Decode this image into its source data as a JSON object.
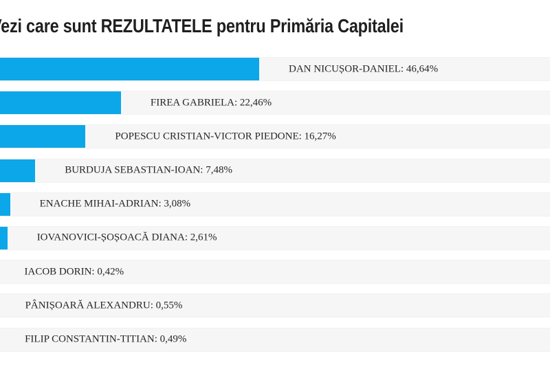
{
  "page": {
    "title": "Vezi care sunt REZULTATELE pentru Primăria Capitalei"
  },
  "colors": {
    "bar": "#0ba7e9",
    "track": "#f6f6f7",
    "title_text": "#1f1f1f",
    "label_text": "#26262a"
  },
  "chart_data": {
    "type": "bar",
    "orientation": "horizontal",
    "title": "Vezi care sunt REZULTATELE pentru Primăria Capitalei",
    "categories": [
      "DAN NICUȘOR-DANIEL",
      "FIREA GABRIELA",
      "POPESCU CRISTIAN-VICTOR PIEDONE",
      "BURDUJA SEBASTIAN-IOAN",
      "ENACHE MIHAI-ADRIAN",
      "IOVANOVICI-ȘOȘOACĂ DIANA",
      "IACOB DORIN",
      "PÂNIȘOARĂ ALEXANDRU",
      "FILIP CONSTANTIN-TITIAN"
    ],
    "values": [
      46.64,
      22.46,
      16.27,
      7.48,
      3.08,
      2.61,
      0.42,
      0.55,
      0.49
    ],
    "value_labels": [
      "46,64%",
      "22,46%",
      "16,27%",
      "7,48%",
      "3,08%",
      "2,61%",
      "0,42%",
      "0,55%",
      "0,49%"
    ],
    "bar_labels": [
      "DAN NICUȘOR-DANIEL: 46,64%",
      "FIREA GABRIELA: 22,46%",
      "POPESCU CRISTIAN-VICTOR PIEDONE: 16,27%",
      "BURDUJA SEBASTIAN-IOAN: 7,48%",
      "ENACHE MIHAI-ADRIAN: 3,08%",
      "IOVANOVICI-ȘOȘOACĂ DIANA: 2,61%",
      "IACOB DORIN: 0,42%",
      "PÂNIȘOARĂ ALEXANDRU: 0,55%",
      "FILIP CONSTANTIN-TITIAN: 0,49%"
    ],
    "xlim": [
      0,
      100
    ],
    "grid": false,
    "legend": false
  }
}
